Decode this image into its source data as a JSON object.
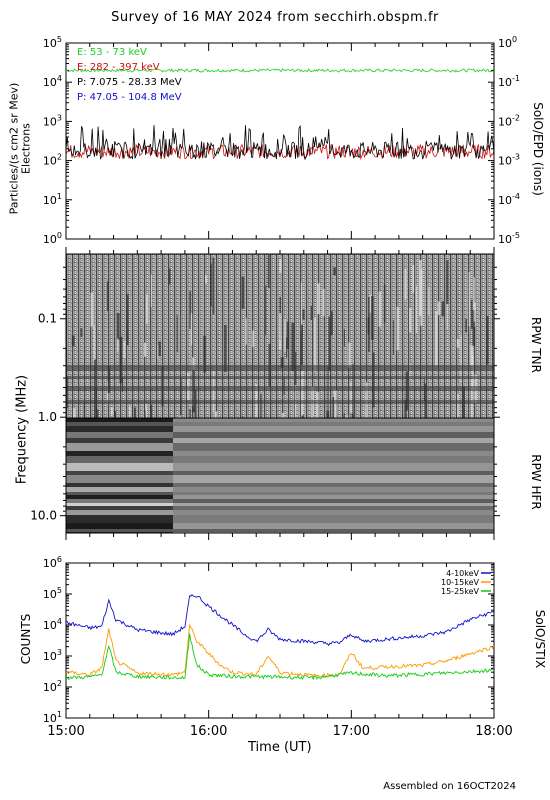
{
  "title": "Survey of 16 MAY 2024 from secchirh.obspm.fr",
  "footer": "Assembled on 16OCT2024",
  "colors": {
    "green": "#22cc22",
    "red": "#cc1111",
    "black": "#000000",
    "blue": "#1111cc",
    "orange": "#ff9900",
    "stix_green": "#11cc11"
  },
  "chart_data": [
    {
      "type": "line",
      "panel": "SolO/EPD",
      "ylabel_line1": "Particles/(s cm2 sr Mev)",
      "ylabel_line2": "Electrons",
      "right_label": "SolO/EPD (ions)",
      "yscale": "log",
      "ylim": [
        1,
        100000
      ],
      "y_ticks": [
        "10^0",
        "10^1",
        "10^2",
        "10^3",
        "10^4",
        "10^5"
      ],
      "y2lim": [
        1e-05,
        1
      ],
      "y2_ticks": [
        "10^-5",
        "10^-4",
        "10^-3",
        "10^-2",
        "10^-1",
        "10^0"
      ],
      "xlim": [
        "15:00",
        "18:00"
      ],
      "legend": [
        {
          "label": "E: 53 - 73 keV",
          "color": "#22cc22"
        },
        {
          "label": "E: 282 - 397 keV",
          "color": "#cc1111"
        },
        {
          "label": "P: 7.075 - 28.33 MeV",
          "color": "#000000"
        },
        {
          "label": "P: 47.05 - 104.8 MeV",
          "color": "#1111cc"
        }
      ],
      "series": [
        {
          "name": "E: 53 - 73 keV",
          "color": "#22cc22",
          "level": 20000,
          "noise": 0.04
        },
        {
          "name": "E: 282 - 397 keV",
          "color": "#cc1111",
          "level": 170,
          "noise": 0.18
        },
        {
          "name": "P: 7.075 - 28.33 MeV",
          "color": "#000000",
          "level": 180,
          "noise": 0.22,
          "spiky": true
        }
      ]
    },
    {
      "type": "heatmap",
      "panel": "RPW TNR / RPW HFR",
      "ylabel": "Frequency (MHz)",
      "right_label_top": "RPW TNR",
      "right_label_bottom": "RPW HFR",
      "yscale": "log",
      "ylim": [
        0.022,
        15
      ],
      "y_ticks": [
        "0.1",
        "1.0",
        "10.0"
      ],
      "xlim": [
        "15:00",
        "18:00"
      ]
    },
    {
      "type": "line",
      "panel": "SolO/STIX",
      "ylabel": "COUNTS",
      "right_label": "SolO/STIX",
      "xlabel": "Time (UT)",
      "yscale": "log",
      "ylim": [
        10,
        1000000
      ],
      "y_ticks": [
        "10^1",
        "10^2",
        "10^3",
        "10^4",
        "10^5",
        "10^6"
      ],
      "x_ticks": [
        "15:00",
        "16:00",
        "17:00",
        "18:00"
      ],
      "legend": [
        {
          "label": "4-10keV",
          "color": "#1111cc"
        },
        {
          "label": "10-15keV",
          "color": "#ff9900"
        },
        {
          "label": "15-25keV",
          "color": "#11cc11"
        }
      ],
      "series": [
        {
          "name": "4-10keV",
          "color": "#1111cc",
          "points": [
            [
              "15:00",
              12000
            ],
            [
              "15:10",
              8000
            ],
            [
              "15:15",
              9000
            ],
            [
              "15:18",
              60000
            ],
            [
              "15:21",
              15000
            ],
            [
              "15:30",
              7000
            ],
            [
              "15:45",
              5000
            ],
            [
              "15:50",
              9000
            ],
            [
              "15:52",
              80000
            ],
            [
              "15:55",
              90000
            ],
            [
              "16:00",
              40000
            ],
            [
              "16:05",
              20000
            ],
            [
              "16:10",
              10000
            ],
            [
              "16:15",
              5000
            ],
            [
              "16:20",
              3000
            ],
            [
              "16:25",
              7000
            ],
            [
              "16:30",
              3500
            ],
            [
              "16:40",
              3000
            ],
            [
              "16:45",
              2800
            ],
            [
              "16:50",
              2500
            ],
            [
              "16:55",
              2700
            ],
            [
              "17:00",
              5000
            ],
            [
              "17:05",
              3000
            ],
            [
              "17:15",
              3500
            ],
            [
              "17:30",
              4500
            ],
            [
              "17:40",
              6000
            ],
            [
              "17:50",
              15000
            ],
            [
              "18:00",
              27000
            ]
          ]
        },
        {
          "name": "10-15keV",
          "color": "#ff9900",
          "points": [
            [
              "15:00",
              300
            ],
            [
              "15:10",
              250
            ],
            [
              "15:15",
              400
            ],
            [
              "15:18",
              7000
            ],
            [
              "15:21",
              700
            ],
            [
              "15:30",
              280
            ],
            [
              "15:45",
              250
            ],
            [
              "15:50",
              300
            ],
            [
              "15:52",
              10000
            ],
            [
              "15:55",
              3000
            ],
            [
              "16:00",
              1200
            ],
            [
              "16:05",
              500
            ],
            [
              "16:10",
              300
            ],
            [
              "16:20",
              250
            ],
            [
              "16:25",
              1000
            ],
            [
              "16:30",
              300
            ],
            [
              "16:40",
              250
            ],
            [
              "16:45",
              230
            ],
            [
              "16:55",
              250
            ],
            [
              "17:00",
              1300
            ],
            [
              "17:05",
              400
            ],
            [
              "17:15",
              450
            ],
            [
              "17:30",
              500
            ],
            [
              "17:40",
              700
            ],
            [
              "17:50",
              1200
            ],
            [
              "18:00",
              2000
            ]
          ]
        },
        {
          "name": "15-25keV",
          "color": "#11cc11",
          "points": [
            [
              "15:00",
              200
            ],
            [
              "15:10",
              210
            ],
            [
              "15:15",
              250
            ],
            [
              "15:18",
              2000
            ],
            [
              "15:21",
              300
            ],
            [
              "15:30",
              220
            ],
            [
              "15:45",
              200
            ],
            [
              "15:50",
              200
            ],
            [
              "15:52",
              5000
            ],
            [
              "15:55",
              500
            ],
            [
              "16:00",
              250
            ],
            [
              "16:10",
              220
            ],
            [
              "16:30",
              210
            ],
            [
              "16:45",
              200
            ],
            [
              "17:00",
              280
            ],
            [
              "17:15",
              230
            ],
            [
              "17:30",
              260
            ],
            [
              "17:45",
              300
            ],
            [
              "18:00",
              350
            ]
          ]
        }
      ]
    }
  ]
}
